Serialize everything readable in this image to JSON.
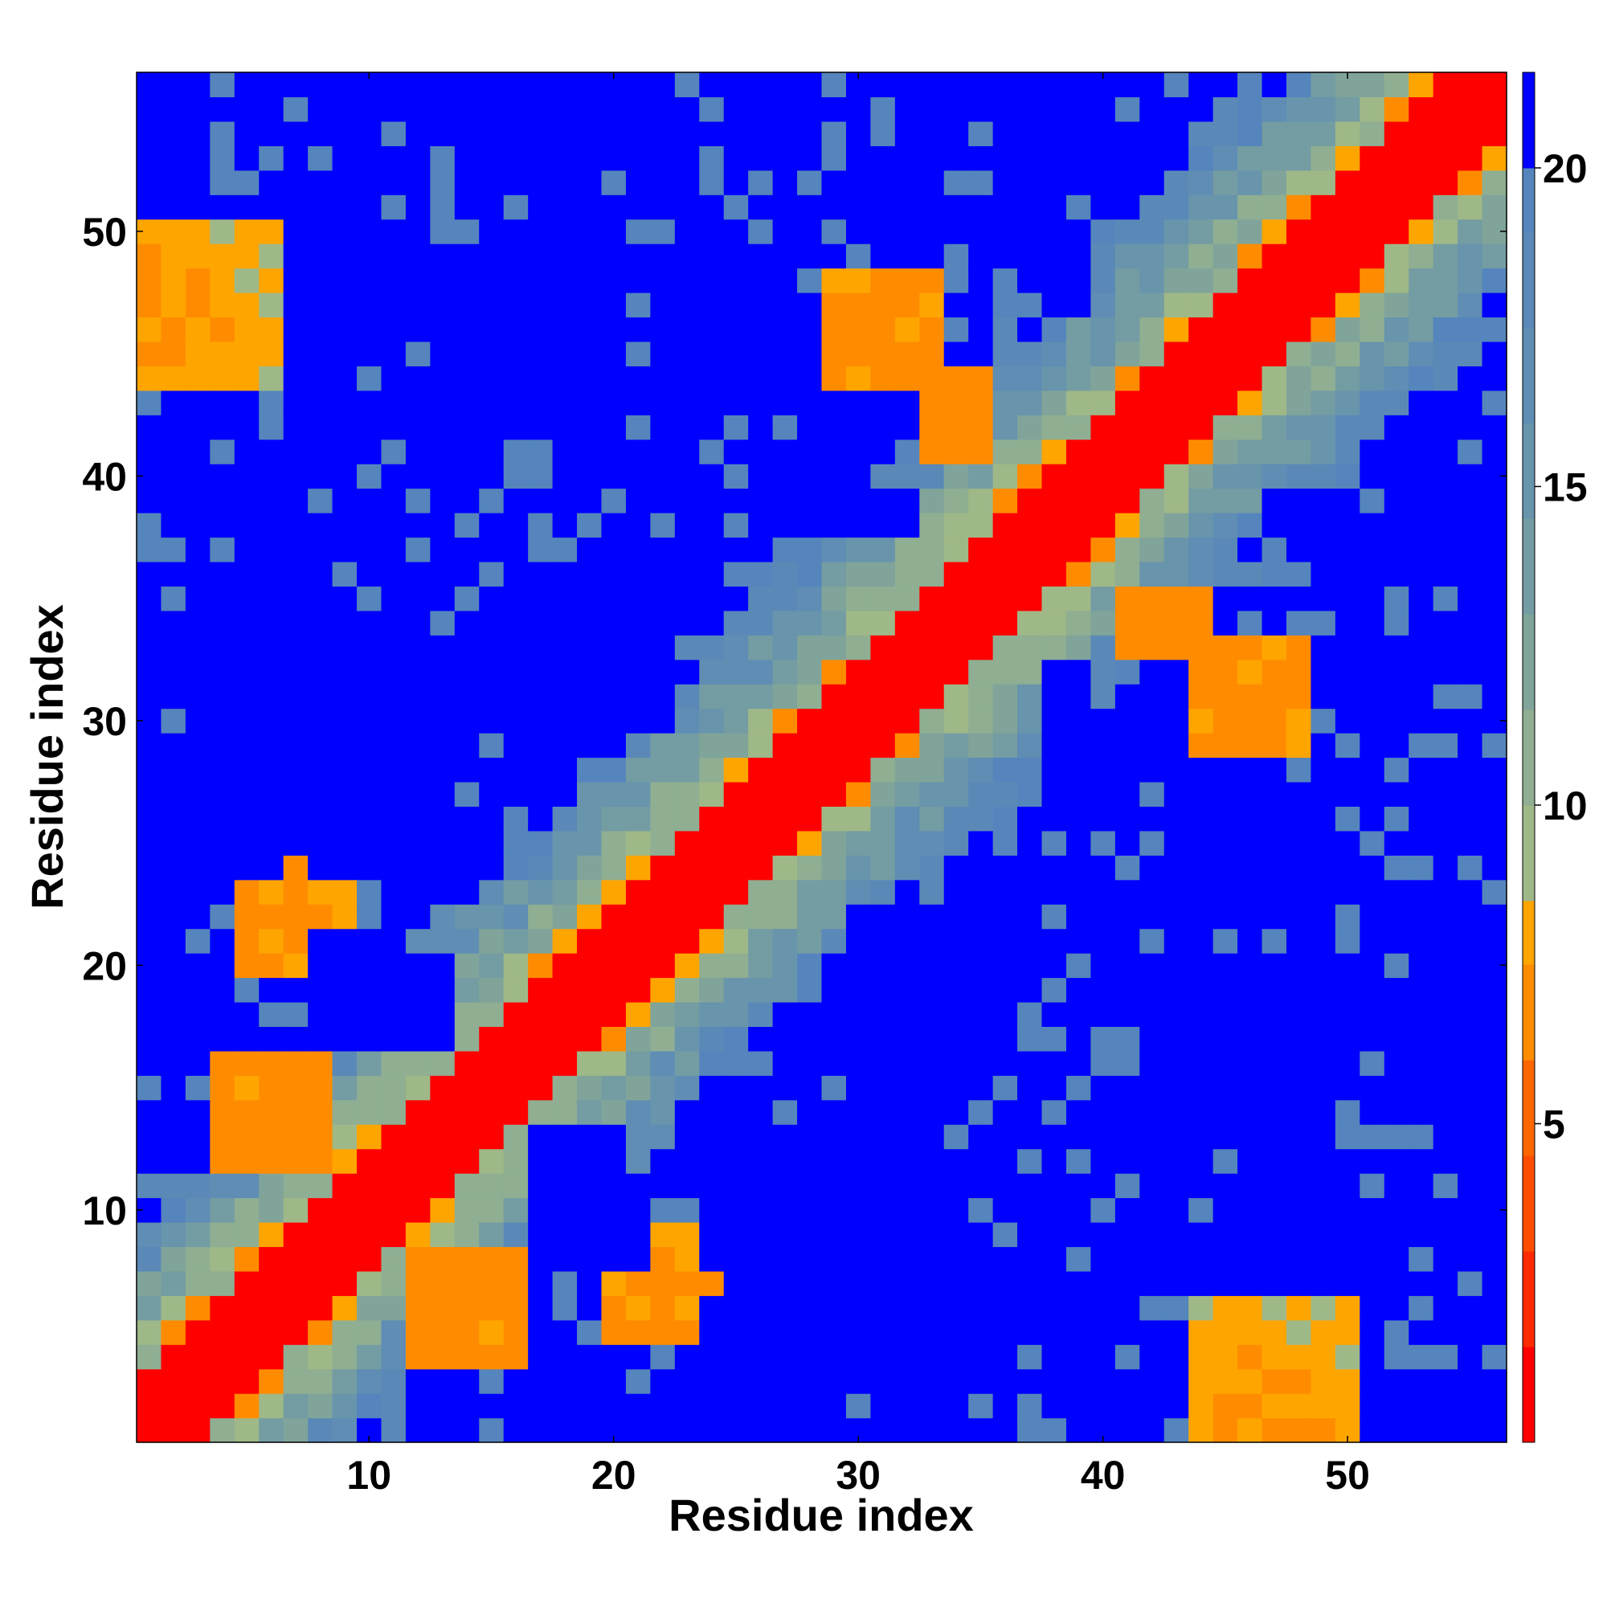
{
  "chart_data": {
    "type": "heatmap",
    "title": "",
    "xlabel": "Residue index",
    "ylabel": "Residue index",
    "n": 56,
    "x_ticks": [
      10,
      20,
      30,
      40,
      50
    ],
    "y_ticks": [
      10,
      20,
      30,
      40,
      50
    ],
    "colorbar": {
      "ticks": [
        5,
        10,
        15,
        20
      ],
      "range": [
        0,
        21.5
      ],
      "bins": [
        {
          "max": 1.5,
          "color": "#ff0000"
        },
        {
          "max": 3,
          "color": "#ff2a00"
        },
        {
          "max": 4.5,
          "color": "#ff4d00"
        },
        {
          "max": 6,
          "color": "#ff6600"
        },
        {
          "max": 7.5,
          "color": "#ff8c00"
        },
        {
          "max": 8.5,
          "color": "#ffa500"
        },
        {
          "max": 10,
          "color": "#9fb887"
        },
        {
          "max": 11.5,
          "color": "#8fae92"
        },
        {
          "max": 13,
          "color": "#80a49a"
        },
        {
          "max": 14.5,
          "color": "#749ca3"
        },
        {
          "max": 16,
          "color": "#6894ac"
        },
        {
          "max": 17.5,
          "color": "#5f8db4"
        },
        {
          "max": 19,
          "color": "#5a89b8"
        },
        {
          "max": 20,
          "color": "#5585bc"
        },
        {
          "max": 99,
          "color": "#0000ff"
        }
      ]
    },
    "features": {
      "diagonal_value": 1.0,
      "distance_scale": 1.7,
      "max_value": 21.5,
      "noise_amplitude": 2.2,
      "near_contacts": [
        {
          "i": [
            1,
            6
          ],
          "j": [
            44,
            50
          ],
          "value": 7.5
        },
        {
          "i": [
            5,
            9
          ],
          "j": [
            20,
            24
          ],
          "value": 7
        },
        {
          "i": [
            12,
            16
          ],
          "j": [
            4,
            8
          ],
          "value": 6.5
        },
        {
          "i": [
            21,
            24
          ],
          "j": [
            5,
            8
          ],
          "value": 6.5
        },
        {
          "i": [
            44,
            49
          ],
          "j": [
            1,
            4
          ],
          "value": 7
        },
        {
          "i": [
            29,
            33
          ],
          "j": [
            44,
            48
          ],
          "value": 6.5
        },
        {
          "i": [
            41,
            44
          ],
          "j": [
            33,
            35
          ],
          "value": 6
        },
        {
          "i": [
            44,
            46
          ],
          "j": [
            30,
            33
          ],
          "value": 6.5
        }
      ],
      "far_blocks": [
        {
          "i": [
            1,
            3
          ],
          "j": [
            16,
            20
          ],
          "value": 21
        },
        {
          "i": [
            1,
            4
          ],
          "j": [
            25,
            28
          ],
          "value": 21
        },
        {
          "i": [
            5,
            12
          ],
          "j": [
            27,
            31
          ],
          "value": 21
        },
        {
          "i": [
            9,
            13
          ],
          "j": [
            17,
            20
          ],
          "value": 21
        },
        {
          "i": [
            10,
            18
          ],
          "j": [
            46,
            49
          ],
          "value": 21
        },
        {
          "i": [
            14,
            18
          ],
          "j": [
            31,
            34
          ],
          "value": 21
        },
        {
          "i": [
            16,
            20
          ],
          "j": [
            1,
            2
          ],
          "value": 21
        },
        {
          "i": [
            17,
            21
          ],
          "j": [
            8,
            10
          ],
          "value": 21
        },
        {
          "i": [
            17,
            22
          ],
          "j": [
            30,
            31
          ],
          "value": 21
        },
        {
          "i": [
            17,
            22
          ],
          "j": [
            53,
            56
          ],
          "value": 21
        },
        {
          "i": [
            24,
            28
          ],
          "j": [
            2,
            6
          ],
          "value": 21
        },
        {
          "i": [
            24,
            31
          ],
          "j": [
            8,
            12
          ],
          "value": 21
        },
        {
          "i": [
            29,
            31
          ],
          "j": [
            17,
            20
          ],
          "value": 21
        },
        {
          "i": [
            29,
            30
          ],
          "j": [
            38,
            39
          ],
          "value": 21
        },
        {
          "i": [
            32,
            34
          ],
          "j": [
            9,
            11
          ],
          "value": 21
        },
        {
          "i": [
            36,
            39
          ],
          "j": [
            53,
            56
          ],
          "value": 21
        },
        {
          "i": [
            38,
            39
          ],
          "j": [
            31,
            32
          ],
          "value": 21
        },
        {
          "i": [
            38,
            39
          ],
          "j": [
            47,
            49
          ],
          "value": 21
        },
        {
          "i": [
            44,
            47
          ],
          "j": [
            14,
            20
          ],
          "value": 21
        },
        {
          "i": [
            46,
            48
          ],
          "j": [
            9,
            14
          ],
          "value": 21
        },
        {
          "i": [
            47,
            49
          ],
          "j": [
            38,
            39
          ],
          "value": 21
        },
        {
          "i": [
            52,
            56
          ],
          "j": [
            37,
            40
          ],
          "value": 21
        },
        {
          "i": [
            53,
            56
          ],
          "j": [
            14,
            16
          ],
          "value": 21
        },
        {
          "i": [
            55,
            56
          ],
          "j": [
            15,
            21
          ],
          "value": 21
        },
        {
          "i": [
            55,
            56
          ],
          "j": [
            1,
            3
          ],
          "value": 21
        }
      ]
    }
  }
}
